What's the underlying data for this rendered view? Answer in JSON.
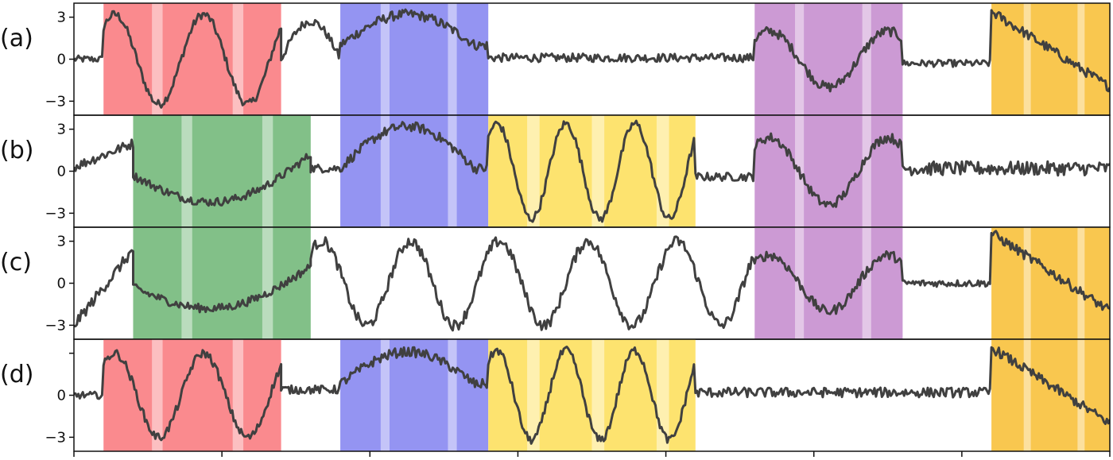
{
  "chart_data": {
    "type": "line",
    "panels": [
      {
        "label": "(a)",
        "ylim": [
          -4,
          4
        ],
        "yticks": [
          {
            "value": 3,
            "label": "3"
          },
          {
            "value": 0,
            "label": "0"
          },
          {
            "value": -3,
            "label": "−3"
          }
        ],
        "segments": [
          {
            "start": 1.0,
            "end": 2.0,
            "color": "#ffffff",
            "kind": "noise",
            "level": 0.0,
            "noise": 0.25
          },
          {
            "start": 2.0,
            "end": 8.0,
            "color": "#fa8a8e",
            "kind": "sine",
            "amp": 3.2,
            "period": 3.0,
            "noise": 0.3
          },
          {
            "start": 8.0,
            "end": 10.0,
            "color": "#ffffff",
            "kind": "sineTail",
            "amp": 3.0,
            "noise": 0.3
          },
          {
            "start": 10.0,
            "end": 15.0,
            "color": "#9494f2",
            "kind": "bump",
            "amp": 3.2,
            "base": 1.0,
            "noise": 0.35
          },
          {
            "start": 15.0,
            "end": 24.0,
            "color": "#ffffff",
            "kind": "noise",
            "level": 0.1,
            "noise": 0.3
          },
          {
            "start": 24.0,
            "end": 29.0,
            "color": "#cc9ad4",
            "kind": "sine",
            "amp": 2.0,
            "period": 4.0,
            "noise": 0.35
          },
          {
            "start": 29.0,
            "end": 32.0,
            "color": "#ffffff",
            "kind": "noise",
            "level": -0.3,
            "noise": 0.25
          },
          {
            "start": 32.0,
            "end": 36.0,
            "color": "#f9c74f",
            "kind": "decay",
            "amp": 3.2,
            "noise": 0.35
          }
        ]
      },
      {
        "label": "(b)",
        "ylim": [
          -4,
          4
        ],
        "yticks": [
          {
            "value": 3,
            "label": "3"
          },
          {
            "value": 0,
            "label": "0"
          },
          {
            "value": -3,
            "label": "−3"
          }
        ],
        "segments": [
          {
            "start": 1.0,
            "end": 3.0,
            "color": "#ffffff",
            "kind": "ramp",
            "from": 0.3,
            "to": 2.0,
            "noise": 0.35
          },
          {
            "start": 3.0,
            "end": 9.0,
            "color": "#82c088",
            "kind": "valley",
            "amp": 2.6,
            "noise": 0.3
          },
          {
            "start": 9.0,
            "end": 10.0,
            "color": "#ffffff",
            "kind": "noise",
            "level": 0.2,
            "noise": 0.3
          },
          {
            "start": 10.0,
            "end": 15.0,
            "color": "#9494f2",
            "kind": "bump",
            "amp": 3.2,
            "base": 0.2,
            "noise": 0.35
          },
          {
            "start": 15.0,
            "end": 22.0,
            "color": "#fde36f",
            "kind": "sine",
            "amp": 3.4,
            "period": 2.33,
            "noise": 0.3
          },
          {
            "start": 22.0,
            "end": 24.0,
            "color": "#ffffff",
            "kind": "noise",
            "level": -0.4,
            "noise": 0.3
          },
          {
            "start": 24.0,
            "end": 29.0,
            "color": "#cc9ad4",
            "kind": "sine",
            "amp": 2.4,
            "period": 4.0,
            "noise": 0.35
          },
          {
            "start": 29.0,
            "end": 36.0,
            "color": "#ffffff",
            "kind": "noise",
            "level": 0.2,
            "noise": 0.5
          }
        ]
      },
      {
        "label": "(c)",
        "ylim": [
          -4,
          4
        ],
        "yticks": [
          {
            "value": 3,
            "label": "3"
          },
          {
            "value": 0,
            "label": "0"
          },
          {
            "value": -3,
            "label": "−3"
          }
        ],
        "segments": [
          {
            "start": 1.0,
            "end": 3.0,
            "color": "#ffffff",
            "kind": "ramp",
            "from": -3.0,
            "to": 2.4,
            "noise": 0.4
          },
          {
            "start": 3.0,
            "end": 9.0,
            "color": "#82c088",
            "kind": "valley",
            "amp": 2.2,
            "noise": 0.3
          },
          {
            "start": 9.0,
            "end": 24.0,
            "color": "#ffffff",
            "kind": "sine",
            "amp": 3.0,
            "period": 3.0,
            "noise": 0.4
          },
          {
            "start": 24.0,
            "end": 29.0,
            "color": "#cc9ad4",
            "kind": "sine",
            "amp": 2.0,
            "period": 4.0,
            "noise": 0.35
          },
          {
            "start": 29.0,
            "end": 32.0,
            "color": "#ffffff",
            "kind": "noise",
            "level": 0.0,
            "noise": 0.25
          },
          {
            "start": 32.0,
            "end": 36.0,
            "color": "#f9c74f",
            "kind": "decay",
            "amp": 3.4,
            "noise": 0.35
          }
        ]
      },
      {
        "label": "(d)",
        "ylim": [
          -4,
          4
        ],
        "yticks": [
          {
            "value": 0,
            "label": "0"
          },
          {
            "value": -3,
            "label": "−3"
          }
        ],
        "segments": [
          {
            "start": 1.0,
            "end": 2.0,
            "color": "#ffffff",
            "kind": "noise",
            "level": 0.0,
            "noise": 0.25
          },
          {
            "start": 2.0,
            "end": 8.0,
            "color": "#fa8a8e",
            "kind": "sine",
            "amp": 3.0,
            "period": 3.0,
            "noise": 0.3
          },
          {
            "start": 8.0,
            "end": 10.0,
            "color": "#ffffff",
            "kind": "noise",
            "level": 0.4,
            "noise": 0.3
          },
          {
            "start": 10.0,
            "end": 15.0,
            "color": "#9494f2",
            "kind": "bump",
            "amp": 3.1,
            "base": 0.8,
            "noise": 0.35
          },
          {
            "start": 15.0,
            "end": 22.0,
            "color": "#fde36f",
            "kind": "sine",
            "amp": 3.2,
            "period": 2.33,
            "noise": 0.3
          },
          {
            "start": 22.0,
            "end": 32.0,
            "color": "#ffffff",
            "kind": "noise",
            "level": 0.2,
            "noise": 0.35
          },
          {
            "start": 32.0,
            "end": 36.0,
            "color": "#f9c74f",
            "kind": "decay",
            "amp": 3.2,
            "noise": 0.35
          }
        ]
      }
    ],
    "xlim": [
      1,
      36
    ],
    "xticks": [
      1,
      6,
      11,
      16,
      21,
      26,
      31,
      36
    ],
    "line_color": "#404040",
    "grid": false,
    "legend": "none"
  }
}
